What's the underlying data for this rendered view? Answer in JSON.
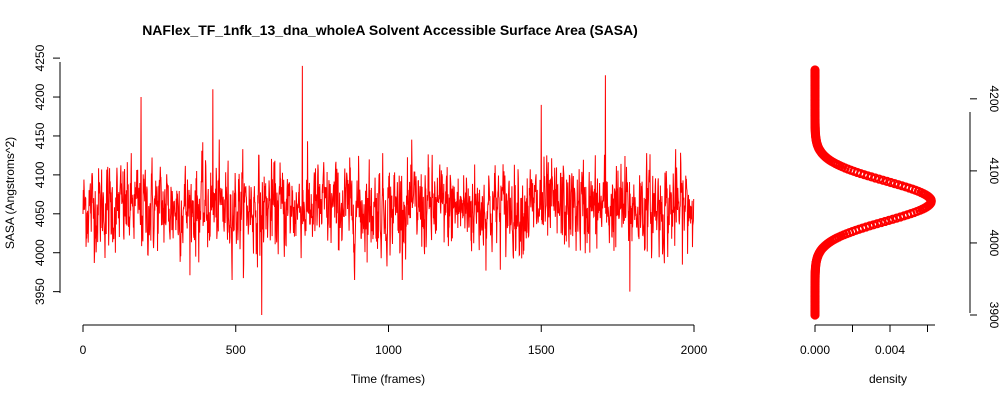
{
  "chart_data": [
    {
      "type": "line",
      "title": "NAFlex_TF_1nfk_13_dna_wholeA Solvent Accessible Surface Area (SASA)",
      "xlabel": "Time (frames)",
      "ylabel": "SASA (Angstroms^2)",
      "xlim": [
        0,
        2000
      ],
      "ylim": [
        3920,
        4245
      ],
      "xticks": [
        0,
        500,
        1000,
        1500,
        2000
      ],
      "yticks": [
        3950,
        4000,
        4050,
        4100,
        4150,
        4200,
        4250
      ],
      "grid": false,
      "color": "#ff0000",
      "series": [
        {
          "name": "",
          "frames": 2000,
          "mean": 4058,
          "sd": 28,
          "min": 3920,
          "max": 4240,
          "notable_points": [
            {
              "x": 585,
              "y": 3920
            },
            {
              "x": 718,
              "y": 4240
            },
            {
              "x": 1710,
              "y": 4228
            },
            {
              "x": 190,
              "y": 4200
            },
            {
              "x": 425,
              "y": 4210
            },
            {
              "x": 1500,
              "y": 4190
            },
            {
              "x": 1790,
              "y": 3950
            }
          ]
        }
      ]
    },
    {
      "type": "line",
      "xlabel": "density",
      "ylabel": "",
      "xlim": [
        0,
        0.0064
      ],
      "ylim": [
        3900,
        4240
      ],
      "xticks": [
        "0.000",
        "0.004"
      ],
      "yticks": [
        3900,
        4000,
        4100,
        4200
      ],
      "y_axis_side": "right",
      "grid": false,
      "color": "#ff0000",
      "series": [
        {
          "name": "",
          "distribution": "normal",
          "mean": 4058,
          "sd": 28,
          "peak_density": 0.0062,
          "y_range": [
            3900,
            4240
          ]
        }
      ]
    }
  ]
}
